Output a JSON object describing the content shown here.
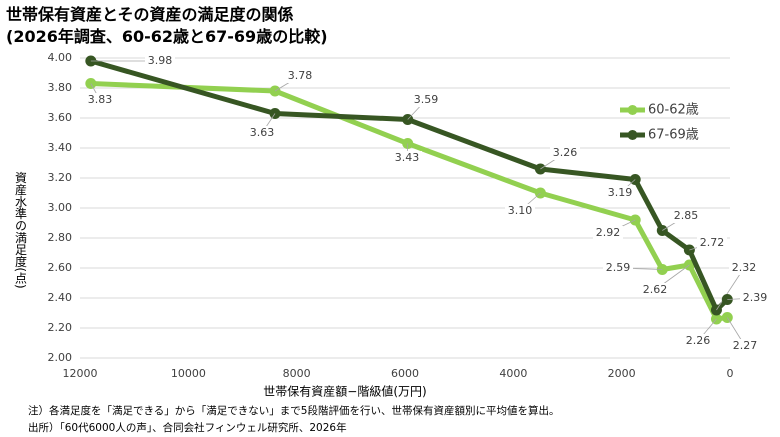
{
  "chart_data": {
    "type": "line",
    "title": "世帯保有資産とその資産の満足度の関係",
    "subtitle": "(2026年調査、60-62歳と67-69歳の比較)",
    "x_label": "世帯保有資産額−階級値(万円)",
    "y_label": "資産水準の満足度(点)",
    "notes": [
      "注）各満足度を「満足できる」から「満足できない」まで5段階評価を行い、世帯保有資産額別に平均値を算出。",
      "出所）「60代6000人の声」、合同会社フィンウェル研究所、2026年"
    ],
    "x": [
      11800,
      8400,
      5950,
      3500,
      1750,
      1250,
      750,
      250,
      50
    ],
    "series": [
      {
        "name": "60-62歳",
        "color": "#92d050",
        "values": [
          3.83,
          3.78,
          3.43,
          3.1,
          2.92,
          2.59,
          2.62,
          2.26,
          2.27
        ],
        "value_labels": [
          "3.83",
          "3.78",
          "3.43",
          "3.10",
          "2.92",
          "2.59",
          "2.62",
          "2.26",
          "2.27"
        ]
      },
      {
        "name": "67-69歳",
        "color": "#375623",
        "values": [
          3.98,
          3.63,
          3.59,
          3.26,
          3.19,
          2.85,
          2.72,
          2.32,
          2.39
        ],
        "value_labels": [
          "3.98",
          "3.63",
          "3.59",
          "3.26",
          "3.19",
          "2.85",
          "2.72",
          "2.32",
          "2.39"
        ]
      }
    ],
    "xlim": [
      12000,
      0
    ],
    "xticks": [
      12000,
      10000,
      8000,
      6000,
      4000,
      2000,
      0
    ],
    "ylim": [
      2,
      4
    ],
    "yticks": [
      {
        "value": 2,
        "label": "2.00"
      },
      {
        "value": 2.2,
        "label": "2.20"
      },
      {
        "value": 2.4,
        "label": "2.40"
      },
      {
        "value": 2.6,
        "label": "2.60"
      },
      {
        "value": 2.8,
        "label": "2.80"
      },
      {
        "value": 3,
        "label": "3.00"
      },
      {
        "value": 3.2,
        "label": "3.20"
      },
      {
        "value": 3.4,
        "label": "3.40"
      },
      {
        "value": 3.6,
        "label": "3.60"
      },
      {
        "value": 3.8,
        "label": "3.80"
      },
      {
        "value": 4,
        "label": "4.00"
      }
    ],
    "grid": true,
    "legend": "right"
  }
}
